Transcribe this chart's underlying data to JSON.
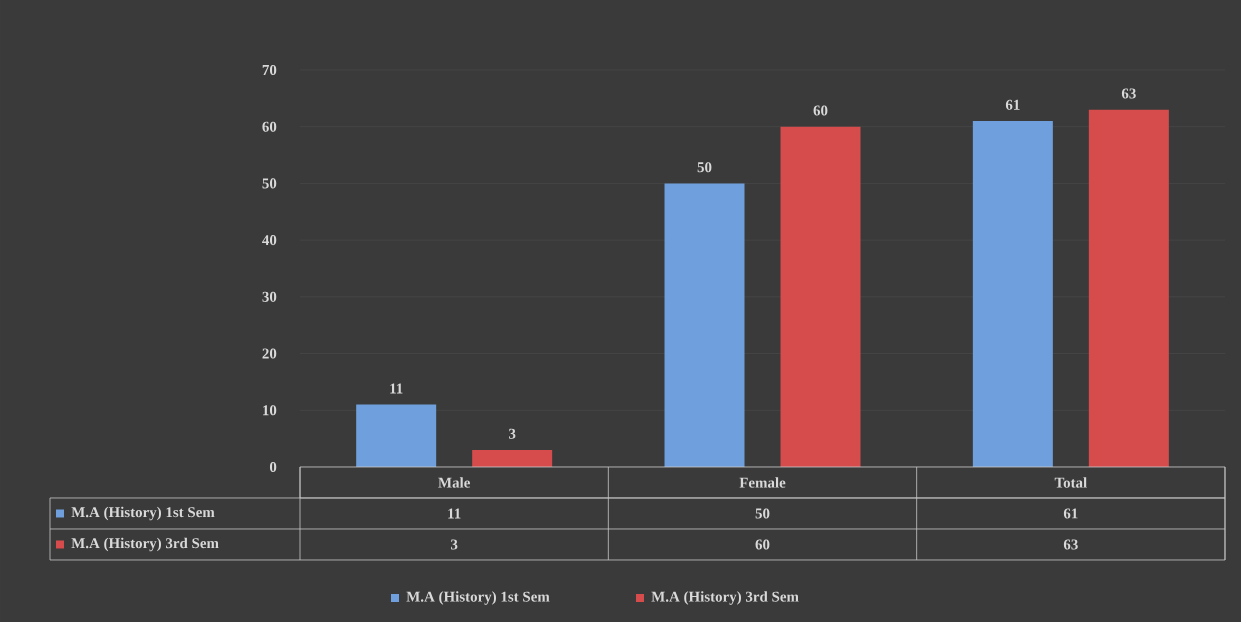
{
  "chart_data": {
    "type": "bar",
    "categories": [
      "Male",
      "Female",
      "Total"
    ],
    "series": [
      {
        "name": "M.A (History) 1st Sem",
        "color": "#6f9fdc",
        "values": [
          11,
          50,
          61
        ],
        "value_labels": [
          "11",
          "50",
          "61"
        ]
      },
      {
        "name": "M.A (History) 3rd Sem",
        "color": "#d64c4c",
        "values": [
          3,
          60,
          63
        ],
        "value_labels": [
          "3",
          "60",
          "63"
        ]
      }
    ],
    "ylim": [
      0,
      70
    ],
    "yticks": [
      0,
      10,
      20,
      30,
      40,
      50,
      60,
      70
    ],
    "grid": "y",
    "legend": "bottom",
    "data_labels": true
  }
}
